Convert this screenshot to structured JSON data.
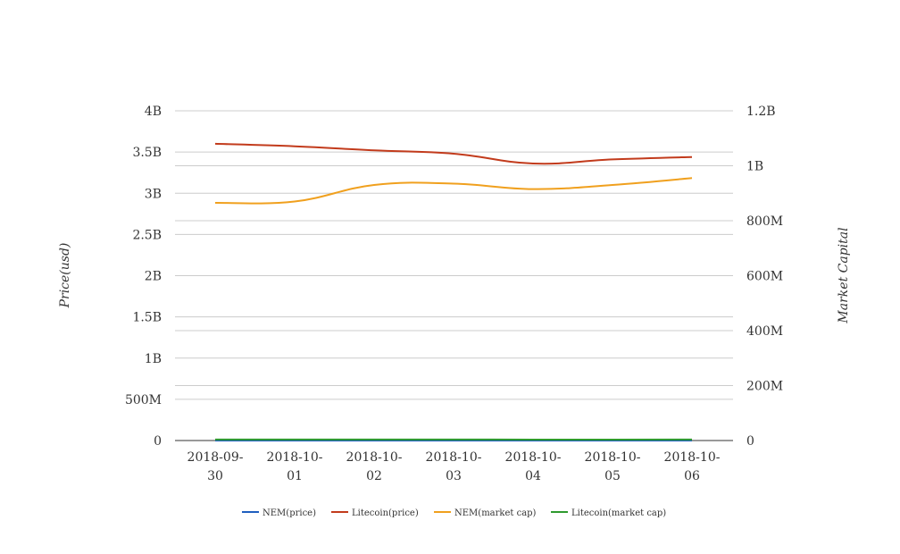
{
  "chart_data": {
    "type": "line",
    "categories": [
      "2018-09-30",
      "2018-10-01",
      "2018-10-02",
      "2018-10-03",
      "2018-10-04",
      "2018-10-05",
      "2018-10-06"
    ],
    "category_lines": [
      [
        "2018-09-",
        "30"
      ],
      [
        "2018-10-",
        "01"
      ],
      [
        "2018-10-",
        "02"
      ],
      [
        "2018-10-",
        "03"
      ],
      [
        "2018-10-",
        "04"
      ],
      [
        "2018-10-",
        "05"
      ],
      [
        "2018-10-",
        "06"
      ]
    ],
    "ylabel_left": "Price(usd)",
    "ylabel_right": "Market Capital",
    "left_axis": {
      "ylim": [
        0,
        4000000000
      ],
      "ticks": [
        0,
        500000000,
        1000000000,
        1500000000,
        2000000000,
        2500000000,
        3000000000,
        3500000000,
        4000000000
      ],
      "tick_labels": [
        "0",
        "500M",
        "1B",
        "1.5B",
        "2B",
        "2.5B",
        "3B",
        "3.5B",
        "4B"
      ]
    },
    "right_axis": {
      "ylim": [
        0,
        1200000000
      ],
      "ticks": [
        0,
        200000000,
        400000000,
        600000000,
        800000000,
        1000000000,
        1200000000
      ],
      "tick_labels": [
        "0",
        "200M",
        "400M",
        "600M",
        "800M",
        "1B",
        "1.2B"
      ]
    },
    "series": [
      {
        "name": "NEM(price)",
        "axis": "left",
        "color": "#1f5fbf",
        "values": [
          0.12,
          0.12,
          0.12,
          0.12,
          0.11,
          0.11,
          0.11
        ]
      },
      {
        "name": "Litecoin(price)",
        "axis": "left",
        "color": "#c23b1c",
        "values": [
          3600000000,
          3570000000,
          3520000000,
          3480000000,
          3360000000,
          3410000000,
          3440000000
        ]
      },
      {
        "name": "NEM(market cap)",
        "axis": "right",
        "color": "#f0a01e",
        "values": [
          865000000,
          870000000,
          930000000,
          935000000,
          915000000,
          930000000,
          955000000
        ]
      },
      {
        "name": "Litecoin(market cap)",
        "axis": "right",
        "color": "#2e9a2e",
        "values": [
          3500000,
          3500000,
          3500000,
          3500000,
          3400000,
          3400000,
          3500000
        ]
      }
    ],
    "grid": true,
    "legend_position": "bottom"
  }
}
